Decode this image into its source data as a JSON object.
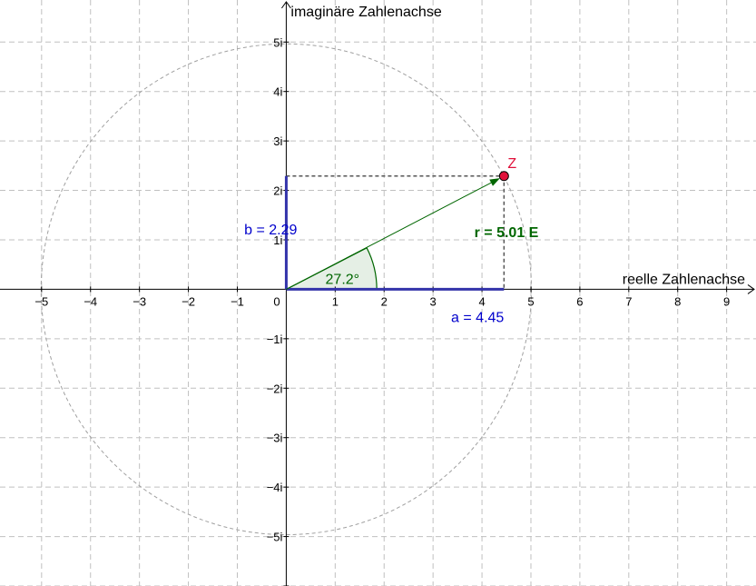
{
  "axes": {
    "x_title": "reelle Zahlenachse",
    "y_title": "imaginäre Zahlenachse",
    "origin_label": "0",
    "x_ticks": [
      "−5",
      "−4",
      "−3",
      "−2",
      "−1",
      "1",
      "2",
      "3",
      "4",
      "5",
      "6",
      "7",
      "8",
      "9"
    ],
    "y_ticks": [
      "5i",
      "4i",
      "3i",
      "2i",
      "1i",
      "−1i",
      "−2i",
      "−3i",
      "−4i",
      "−5i"
    ],
    "x_range": [
      -5.85,
      9.6
    ],
    "y_range": [
      -6.0,
      5.85
    ],
    "grid": true
  },
  "complex_number": {
    "point_label": "Z",
    "re": 4.45,
    "im": 2.29,
    "real_label": "a = 4.45",
    "imag_label": "b = 2.29",
    "radius_label": "r = 5.01 E",
    "angle_label": "27.2°",
    "radius": 5.01,
    "angle_deg": 27.2
  },
  "colors": {
    "grid": "#c0c0c0",
    "circle": "#a0a0a0",
    "component_lines": "#3333aa",
    "vector": "#006600",
    "angle_fill": "#e5efe5",
    "point": "#e0103a",
    "labels_blue": "#0000cc",
    "labels_green": "#006600"
  }
}
